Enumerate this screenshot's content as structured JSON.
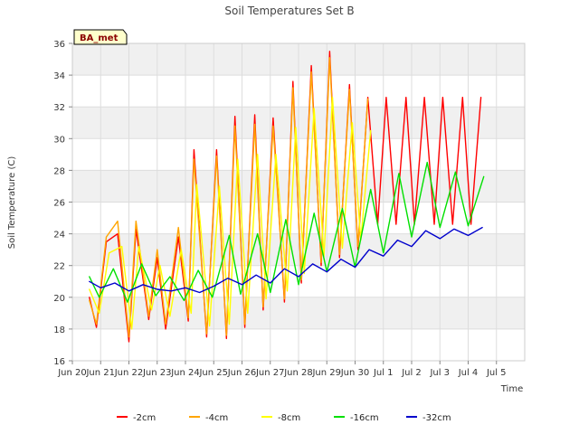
{
  "chart_data": {
    "type": "line",
    "title": "Soil Temperatures Set B",
    "xlabel": "Time",
    "ylabel": "Soil Temperature (C)",
    "badge": "BA_met",
    "xlim": [
      0,
      16
    ],
    "ylim": [
      16,
      36
    ],
    "yticks": [
      16,
      18,
      20,
      22,
      24,
      26,
      28,
      30,
      32,
      34,
      36
    ],
    "xticks": [
      {
        "value": 0,
        "label": "Jun 20"
      },
      {
        "value": 1,
        "label": "Jun 21"
      },
      {
        "value": 2,
        "label": "Jun 22"
      },
      {
        "value": 3,
        "label": "Jun 23"
      },
      {
        "value": 4,
        "label": "Jun 24"
      },
      {
        "value": 5,
        "label": "Jun 25"
      },
      {
        "value": 6,
        "label": "Jun 26"
      },
      {
        "value": 7,
        "label": "Jun 27"
      },
      {
        "value": 8,
        "label": "Jun 28"
      },
      {
        "value": 9,
        "label": "Jun 29"
      },
      {
        "value": 10,
        "label": "Jun 30"
      },
      {
        "value": 11,
        "label": "Jul 1"
      },
      {
        "value": 12,
        "label": "Jul 2"
      },
      {
        "value": 13,
        "label": "Jul 3"
      },
      {
        "value": 14,
        "label": "Jul 4"
      },
      {
        "value": 15,
        "label": "Jul 5"
      }
    ],
    "grid": true,
    "legend_position": "bottom",
    "colors": {
      "band": "#f0f0f0",
      "grid": "#dddddd",
      "axis": "#cccccc"
    },
    "series": [
      {
        "name": "-2cm",
        "color": "#ff0000",
        "width": 1.4,
        "x": [
          0.6,
          0.85,
          1.2,
          1.6,
          2.0,
          2.25,
          2.7,
          3.0,
          3.3,
          3.75,
          4.1,
          4.3,
          4.75,
          5.1,
          5.45,
          5.75,
          6.1,
          6.45,
          6.75,
          7.1,
          7.5,
          7.8,
          8.1,
          8.45,
          8.8,
          9.1,
          9.45,
          9.8,
          10.1,
          10.45,
          10.8,
          11.1,
          11.45,
          11.8,
          12.1,
          12.45,
          12.8,
          13.1,
          13.45,
          13.8,
          14.1,
          14.45
        ],
        "y": [
          20.0,
          18.1,
          23.5,
          24.0,
          17.2,
          24.3,
          18.6,
          22.5,
          18.0,
          23.8,
          18.5,
          29.3,
          17.5,
          29.3,
          17.4,
          31.4,
          18.1,
          31.5,
          19.2,
          31.3,
          19.7,
          33.6,
          20.9,
          34.6,
          22.0,
          35.5,
          22.5,
          33.4,
          23.0,
          32.6,
          24.6,
          32.6,
          24.6,
          32.6,
          24.6,
          32.6,
          24.6,
          32.6,
          24.6,
          32.6,
          24.6,
          32.6
        ]
      },
      {
        "name": "-4cm",
        "color": "#ffa500",
        "width": 1.4,
        "x": [
          0.6,
          0.85,
          1.2,
          1.6,
          2.0,
          2.25,
          2.7,
          3.0,
          3.3,
          3.75,
          4.1,
          4.3,
          4.75,
          5.1,
          5.45,
          5.75,
          6.1,
          6.45,
          6.75,
          7.1,
          7.5,
          7.8,
          8.1,
          8.45,
          8.8,
          9.1,
          9.45,
          9.8,
          10.1,
          10.45
        ],
        "y": [
          19.8,
          18.3,
          23.8,
          24.8,
          17.5,
          24.8,
          18.8,
          23.0,
          18.3,
          24.4,
          18.7,
          28.7,
          17.7,
          28.9,
          17.6,
          30.8,
          18.3,
          30.9,
          19.4,
          30.8,
          19.9,
          33.2,
          21.1,
          34.2,
          22.2,
          35.1,
          22.7,
          33.1,
          23.2,
          32.5
        ]
      },
      {
        "name": "-8cm",
        "color": "#ffff00",
        "width": 1.4,
        "x": [
          0.6,
          0.95,
          1.3,
          1.75,
          2.1,
          2.35,
          2.8,
          3.1,
          3.45,
          3.85,
          4.2,
          4.4,
          4.85,
          5.2,
          5.55,
          5.85,
          6.2,
          6.55,
          6.85,
          7.2,
          7.6,
          7.9,
          8.2,
          8.55,
          8.9,
          9.2,
          9.55,
          9.9,
          10.2,
          10.55
        ],
        "y": [
          20.5,
          19.0,
          22.8,
          23.2,
          18.0,
          23.2,
          19.2,
          22.0,
          18.8,
          23.0,
          19.0,
          27.1,
          18.2,
          27.0,
          18.3,
          28.7,
          19.0,
          29.0,
          19.9,
          29.0,
          20.4,
          30.7,
          21.5,
          31.9,
          22.6,
          32.6,
          23.1,
          31.0,
          23.6,
          30.5
        ]
      },
      {
        "name": "-16cm",
        "color": "#00e000",
        "width": 1.4,
        "x": [
          0.6,
          0.95,
          1.45,
          1.95,
          2.45,
          2.95,
          3.45,
          3.95,
          4.45,
          4.95,
          5.55,
          5.95,
          6.55,
          7.0,
          7.55,
          8.0,
          8.55,
          9.0,
          9.55,
          10.0,
          10.55,
          11.0,
          11.55,
          12.0,
          12.55,
          13.0,
          13.55,
          14.0,
          14.55
        ],
        "y": [
          21.3,
          20.0,
          21.8,
          19.7,
          22.1,
          20.1,
          21.3,
          19.8,
          21.7,
          20.0,
          23.9,
          20.2,
          24.0,
          20.3,
          24.9,
          20.8,
          25.3,
          21.6,
          25.6,
          21.9,
          26.8,
          22.8,
          27.8,
          23.8,
          28.5,
          24.4,
          27.9,
          24.5,
          27.6
        ]
      },
      {
        "name": "-32cm",
        "color": "#0000cc",
        "width": 1.4,
        "x": [
          0.6,
          1.0,
          1.5,
          2.0,
          2.5,
          3.0,
          3.5,
          4.0,
          4.5,
          5.0,
          5.5,
          6.0,
          6.5,
          7.0,
          7.5,
          8.0,
          8.5,
          9.0,
          9.5,
          10.0,
          10.5,
          11.0,
          11.5,
          12.0,
          12.5,
          13.0,
          13.5,
          14.0,
          14.5
        ],
        "y": [
          21.0,
          20.6,
          20.9,
          20.4,
          20.8,
          20.5,
          20.4,
          20.6,
          20.3,
          20.7,
          21.2,
          20.8,
          21.4,
          20.9,
          21.8,
          21.3,
          22.1,
          21.6,
          22.4,
          21.9,
          23.0,
          22.6,
          23.6,
          23.2,
          24.2,
          23.7,
          24.3,
          23.9,
          24.4
        ]
      }
    ]
  }
}
